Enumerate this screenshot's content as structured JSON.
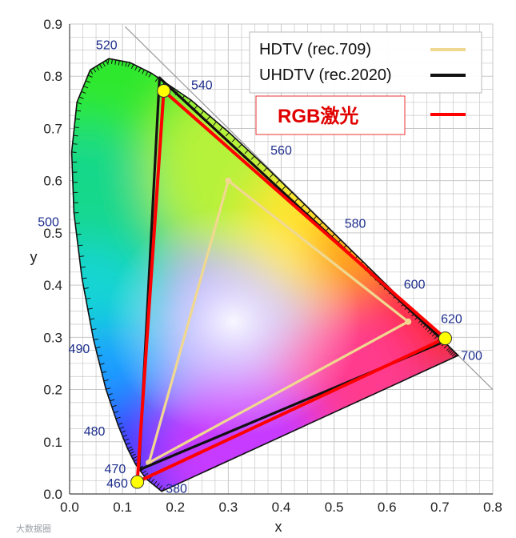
{
  "chart_data": {
    "type": "scatter",
    "title": "",
    "xlabel": "x",
    "ylabel": "y",
    "xlim": [
      0.0,
      0.8
    ],
    "ylim": [
      0.0,
      0.9
    ],
    "grid": true,
    "x_ticks": [
      "0.0",
      "0.1",
      "0.2",
      "0.3",
      "0.4",
      "0.5",
      "0.6",
      "0.7",
      "0.8"
    ],
    "y_ticks": [
      "0.0",
      "0.1",
      "0.2",
      "0.3",
      "0.4",
      "0.5",
      "0.6",
      "0.7",
      "0.8",
      "0.9"
    ],
    "spectral_locus": [
      {
        "wl": 380,
        "x": 0.1741,
        "y": 0.005
      },
      {
        "wl": 460,
        "x": 0.144,
        "y": 0.0297
      },
      {
        "wl": 470,
        "x": 0.1241,
        "y": 0.0578
      },
      {
        "wl": 475,
        "x": 0.1096,
        "y": 0.0868
      },
      {
        "wl": 480,
        "x": 0.0913,
        "y": 0.1327
      },
      {
        "wl": 485,
        "x": 0.0687,
        "y": 0.2007
      },
      {
        "wl": 490,
        "x": 0.0454,
        "y": 0.295
      },
      {
        "wl": 495,
        "x": 0.0235,
        "y": 0.4127
      },
      {
        "wl": 500,
        "x": 0.0082,
        "y": 0.5384
      },
      {
        "wl": 505,
        "x": 0.0039,
        "y": 0.6548
      },
      {
        "wl": 510,
        "x": 0.0139,
        "y": 0.7502
      },
      {
        "wl": 515,
        "x": 0.0389,
        "y": 0.812
      },
      {
        "wl": 520,
        "x": 0.0743,
        "y": 0.8338
      },
      {
        "wl": 525,
        "x": 0.1142,
        "y": 0.8262
      },
      {
        "wl": 530,
        "x": 0.1547,
        "y": 0.8059
      },
      {
        "wl": 540,
        "x": 0.2296,
        "y": 0.7543
      },
      {
        "wl": 550,
        "x": 0.3016,
        "y": 0.6923
      },
      {
        "wl": 560,
        "x": 0.3731,
        "y": 0.6245
      },
      {
        "wl": 570,
        "x": 0.4441,
        "y": 0.5547
      },
      {
        "wl": 580,
        "x": 0.5125,
        "y": 0.4866
      },
      {
        "wl": 590,
        "x": 0.5752,
        "y": 0.4242
      },
      {
        "wl": 600,
        "x": 0.627,
        "y": 0.3725
      },
      {
        "wl": 610,
        "x": 0.6658,
        "y": 0.334
      },
      {
        "wl": 620,
        "x": 0.6915,
        "y": 0.3083
      },
      {
        "wl": 640,
        "x": 0.719,
        "y": 0.2809
      },
      {
        "wl": 700,
        "x": 0.7347,
        "y": 0.2653
      }
    ],
    "wavelength_labels": [
      {
        "text": "520",
        "x": 0.07,
        "y": 0.852
      },
      {
        "text": "540",
        "x": 0.25,
        "y": 0.775
      },
      {
        "text": "560",
        "x": 0.4,
        "y": 0.65
      },
      {
        "text": "580",
        "x": 0.54,
        "y": 0.51
      },
      {
        "text": "600",
        "x": 0.652,
        "y": 0.393
      },
      {
        "text": "620",
        "x": 0.722,
        "y": 0.327
      },
      {
        "text": "700",
        "x": 0.76,
        "y": 0.257
      },
      {
        "text": "500",
        "x": -0.04,
        "y": 0.513
      },
      {
        "text": "490",
        "x": 0.018,
        "y": 0.27
      },
      {
        "text": "480",
        "x": 0.047,
        "y": 0.112
      },
      {
        "text": "470",
        "x": 0.086,
        "y": 0.04
      },
      {
        "text": "460",
        "x": 0.09,
        "y": 0.012
      },
      {
        "text": "380",
        "x": 0.202,
        "y": 0.002
      }
    ],
    "series": [
      {
        "name": "HDTV (rec.709)",
        "color": "#f0d890",
        "closed": true,
        "points": [
          {
            "x": 0.64,
            "y": 0.33
          },
          {
            "x": 0.3,
            "y": 0.6
          },
          {
            "x": 0.15,
            "y": 0.06
          }
        ]
      },
      {
        "name": "UHDTV (rec.2020)",
        "color": "#111111",
        "closed": true,
        "points": [
          {
            "x": 0.708,
            "y": 0.292
          },
          {
            "x": 0.17,
            "y": 0.797
          },
          {
            "x": 0.131,
            "y": 0.046
          }
        ]
      },
      {
        "name": "RGB激光",
        "color": "#ff0000",
        "closed": true,
        "points": [
          {
            "x": 0.71,
            "y": 0.298
          },
          {
            "x": 0.178,
            "y": 0.772
          },
          {
            "x": 0.128,
            "y": 0.023
          }
        ]
      }
    ],
    "primaries_markers": [
      {
        "x": 0.71,
        "y": 0.298
      },
      {
        "x": 0.178,
        "y": 0.772
      },
      {
        "x": 0.128,
        "y": 0.023
      }
    ],
    "legend": {
      "placement": "top-right",
      "entries": [
        {
          "label": "HDTV (rec.709)",
          "color": "#f0d890"
        },
        {
          "label": "UHDTV (rec.2020)",
          "color": "#111111"
        },
        {
          "label": "RGB激光",
          "color": "#ff0000",
          "boxed": true
        }
      ]
    }
  },
  "watermark": "大数据圈",
  "colors": {
    "grid": "#c8c8c8",
    "background": "#ffffff",
    "wavelength_label": "#1d2e8c",
    "legend_border": "#bbbbbb",
    "marker_fill": "#ffff00"
  }
}
